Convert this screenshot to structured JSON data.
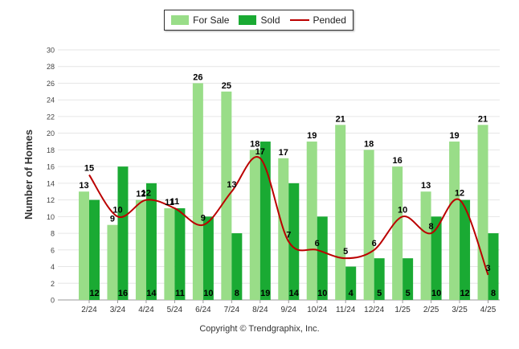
{
  "chart_data": {
    "type": "bar",
    "ylabel": "Number of Homes",
    "xlabel": "",
    "ylim": [
      0,
      30
    ],
    "ytick_step": 2,
    "grid": true,
    "legend_position": "top-center",
    "categories": [
      "2/24",
      "3/24",
      "4/24",
      "5/24",
      "6/24",
      "7/24",
      "8/24",
      "9/24",
      "10/24",
      "11/24",
      "12/24",
      "1/25",
      "2/25",
      "3/25",
      "4/25"
    ],
    "series": [
      {
        "name": "For Sale",
        "kind": "bar",
        "color": "#99dd88",
        "values": [
          13,
          9,
          12,
          11,
          26,
          25,
          18,
          17,
          19,
          21,
          18,
          16,
          13,
          19,
          21
        ]
      },
      {
        "name": "Sold",
        "kind": "bar",
        "color": "#1aaa33",
        "values": [
          12,
          16,
          14,
          11,
          10,
          8,
          19,
          14,
          10,
          4,
          5,
          5,
          10,
          12,
          8
        ]
      },
      {
        "name": "Pended",
        "kind": "line",
        "color": "#bb0000",
        "values": [
          15,
          10,
          12,
          11,
          9,
          13,
          17,
          7,
          6,
          5,
          6,
          10,
          8,
          12,
          3
        ]
      }
    ]
  },
  "copyright": "Copyright © Trendgraphix, Inc."
}
